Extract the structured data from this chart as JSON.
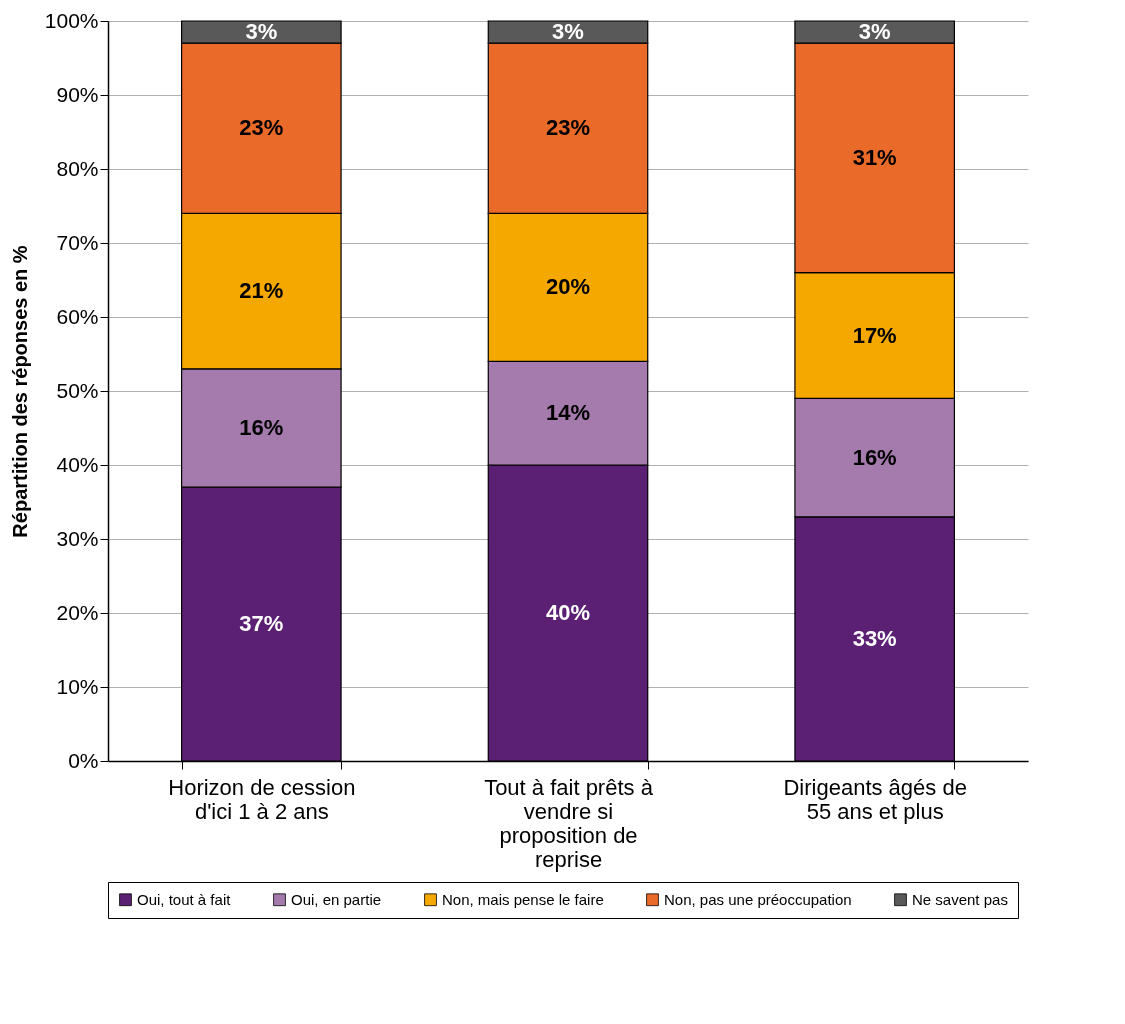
{
  "chart_data": {
    "type": "bar",
    "stacked": true,
    "ylabel": "Répartition des réponses en %",
    "categories": [
      "Horizon de cession d'ici 1 à 2 ans",
      "Tout à fait prêts à vendre si proposition de reprise",
      "Dirigeants âgés de 55 ans et plus"
    ],
    "series": [
      {
        "name": "Oui, tout à fait",
        "color": "#5b1f73",
        "values": [
          37,
          40,
          33
        ]
      },
      {
        "name": "Oui, en partie",
        "color": "#a57aad",
        "values": [
          16,
          14,
          16
        ]
      },
      {
        "name": "Non, mais pense le faire",
        "color": "#f5a800",
        "values": [
          21,
          20,
          17
        ]
      },
      {
        "name": "Non, pas une préoccupation",
        "color": "#ea6a2a",
        "values": [
          23,
          23,
          31
        ]
      },
      {
        "name": "Ne savent pas",
        "color": "#595959",
        "values": [
          3,
          3,
          3
        ]
      }
    ],
    "ylim": [
      0,
      100
    ],
    "yticks": [
      {
        "value": 0,
        "label": "0%"
      },
      {
        "value": 10,
        "label": "10%"
      },
      {
        "value": 20,
        "label": "20%"
      },
      {
        "value": 30,
        "label": "30%"
      },
      {
        "value": 40,
        "label": "40%"
      },
      {
        "value": 50,
        "label": "50%"
      },
      {
        "value": 60,
        "label": "60%"
      },
      {
        "value": 70,
        "label": "70%"
      },
      {
        "value": 80,
        "label": "80%"
      },
      {
        "value": 90,
        "label": "90%"
      },
      {
        "value": 100,
        "label": "100%"
      }
    ],
    "value_labels": [
      [
        "37%",
        "40%",
        "33%"
      ],
      [
        "16%",
        "14%",
        "16%"
      ],
      [
        "21%",
        "20%",
        "17%"
      ],
      [
        "23%",
        "23%",
        "31%"
      ],
      [
        "3%",
        "3%",
        "3%"
      ]
    ],
    "grid": "y",
    "legend": "bottom"
  }
}
